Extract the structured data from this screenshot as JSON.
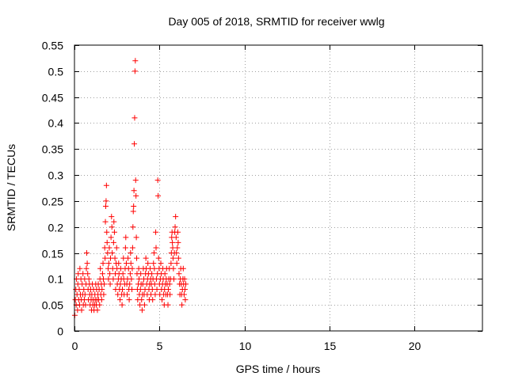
{
  "chart_data": {
    "type": "scatter",
    "title": "Day 005 of 2018, SRMTID for receiver wwlg",
    "xlabel": "GPS time / hours",
    "ylabel": "SRMTID / TECUs",
    "xlim": [
      0,
      24
    ],
    "ylim": [
      0,
      0.55
    ],
    "x_ticks": [
      0,
      5,
      10,
      15,
      20
    ],
    "x_tick_labels": [
      "0",
      "5",
      "10",
      "15",
      "20"
    ],
    "y_ticks": [
      0,
      0.05,
      0.1,
      0.15,
      0.2,
      0.25,
      0.3,
      0.35,
      0.4,
      0.45,
      0.5,
      0.55
    ],
    "y_tick_labels": [
      "0",
      "0.05",
      "0.1",
      "0.15",
      "0.2",
      "0.25",
      "0.3",
      "0.35",
      "0.4",
      "0.45",
      "0.5",
      "0.55"
    ],
    "grid": true,
    "marker": "+",
    "color": "#ff0000",
    "series": [
      {
        "name": "SRMTID",
        "points": [
          [
            0.02,
            0.03
          ],
          [
            0.05,
            0.06
          ],
          [
            0.08,
            0.08
          ],
          [
            0.1,
            0.05
          ],
          [
            0.12,
            0.1
          ],
          [
            0.15,
            0.07
          ],
          [
            0.18,
            0.04
          ],
          [
            0.2,
            0.09
          ],
          [
            0.22,
            0.11
          ],
          [
            0.25,
            0.06
          ],
          [
            0.28,
            0.08
          ],
          [
            0.3,
            0.05
          ],
          [
            0.32,
            0.12
          ],
          [
            0.35,
            0.07
          ],
          [
            0.38,
            0.1
          ],
          [
            0.4,
            0.06
          ],
          [
            0.42,
            0.04
          ],
          [
            0.45,
            0.09
          ],
          [
            0.48,
            0.07
          ],
          [
            0.5,
            0.11
          ],
          [
            0.52,
            0.05
          ],
          [
            0.55,
            0.08
          ],
          [
            0.58,
            0.06
          ],
          [
            0.6,
            0.1
          ],
          [
            0.62,
            0.07
          ],
          [
            0.65,
            0.05
          ],
          [
            0.68,
            0.09
          ],
          [
            0.7,
            0.12
          ],
          [
            0.72,
            0.15
          ],
          [
            0.75,
            0.13
          ],
          [
            0.78,
            0.11
          ],
          [
            0.8,
            0.08
          ],
          [
            0.82,
            0.06
          ],
          [
            0.85,
            0.1
          ],
          [
            0.88,
            0.09
          ],
          [
            0.9,
            0.07
          ],
          [
            0.92,
            0.05
          ],
          [
            0.95,
            0.08
          ],
          [
            0.98,
            0.06
          ],
          [
            1.0,
            0.04
          ],
          [
            1.02,
            0.07
          ],
          [
            1.05,
            0.09
          ],
          [
            1.08,
            0.05
          ],
          [
            1.1,
            0.06
          ],
          [
            1.12,
            0.08
          ],
          [
            1.15,
            0.04
          ],
          [
            1.18,
            0.05
          ],
          [
            1.2,
            0.07
          ],
          [
            1.22,
            0.06
          ],
          [
            1.25,
            0.09
          ],
          [
            1.28,
            0.05
          ],
          [
            1.3,
            0.08
          ],
          [
            1.32,
            0.06
          ],
          [
            1.35,
            0.04
          ],
          [
            1.38,
            0.07
          ],
          [
            1.4,
            0.09
          ],
          [
            1.42,
            0.06
          ],
          [
            1.45,
            0.08
          ],
          [
            1.48,
            0.05
          ],
          [
            1.5,
            0.1
          ],
          [
            1.52,
            0.12
          ],
          [
            1.55,
            0.07
          ],
          [
            1.58,
            0.09
          ],
          [
            1.6,
            0.06
          ],
          [
            1.62,
            0.08
          ],
          [
            1.65,
            0.11
          ],
          [
            1.68,
            0.13
          ],
          [
            1.7,
            0.1
          ],
          [
            1.72,
            0.07
          ],
          [
            1.75,
            0.09
          ],
          [
            1.78,
            0.16
          ],
          [
            1.8,
            0.14
          ],
          [
            1.82,
            0.21
          ],
          [
            1.84,
            0.24
          ],
          [
            1.86,
            0.25
          ],
          [
            1.88,
            0.28
          ],
          [
            1.9,
            0.19
          ],
          [
            1.92,
            0.17
          ],
          [
            1.95,
            0.15
          ],
          [
            1.98,
            0.12
          ],
          [
            2.0,
            0.1
          ],
          [
            2.02,
            0.13
          ],
          [
            2.05,
            0.16
          ],
          [
            2.08,
            0.11
          ],
          [
            2.1,
            0.09
          ],
          [
            2.12,
            0.14
          ],
          [
            2.15,
            0.18
          ],
          [
            2.18,
            0.22
          ],
          [
            2.2,
            0.2
          ],
          [
            2.22,
            0.15
          ],
          [
            2.25,
            0.12
          ],
          [
            2.28,
            0.1
          ],
          [
            2.3,
            0.17
          ],
          [
            2.32,
            0.21
          ],
          [
            2.35,
            0.19
          ],
          [
            2.38,
            0.14
          ],
          [
            2.4,
            0.11
          ],
          [
            2.42,
            0.08
          ],
          [
            2.45,
            0.13
          ],
          [
            2.48,
            0.16
          ],
          [
            2.5,
            0.12
          ],
          [
            2.52,
            0.09
          ],
          [
            2.55,
            0.07
          ],
          [
            2.58,
            0.1
          ],
          [
            2.6,
            0.13
          ],
          [
            2.62,
            0.11
          ],
          [
            2.65,
            0.08
          ],
          [
            2.68,
            0.06
          ],
          [
            2.7,
            0.09
          ],
          [
            2.72,
            0.12
          ],
          [
            2.75,
            0.1
          ],
          [
            2.78,
            0.07
          ],
          [
            2.8,
            0.05
          ],
          [
            2.82,
            0.08
          ],
          [
            2.85,
            0.11
          ],
          [
            2.88,
            0.14
          ],
          [
            2.9,
            0.1
          ],
          [
            2.92,
            0.07
          ],
          [
            2.95,
            0.09
          ],
          [
            2.98,
            0.12
          ],
          [
            3.0,
            0.16
          ],
          [
            3.02,
            0.18
          ],
          [
            3.05,
            0.13
          ],
          [
            3.08,
            0.09
          ],
          [
            3.1,
            0.07
          ],
          [
            3.12,
            0.1
          ],
          [
            3.15,
            0.14
          ],
          [
            3.18,
            0.12
          ],
          [
            3.2,
            0.08
          ],
          [
            3.22,
            0.06
          ],
          [
            3.25,
            0.09
          ],
          [
            3.28,
            0.11
          ],
          [
            3.3,
            0.15
          ],
          [
            3.32,
            0.13
          ],
          [
            3.35,
            0.1
          ],
          [
            3.38,
            0.08
          ],
          [
            3.4,
            0.12
          ],
          [
            3.42,
            0.16
          ],
          [
            3.44,
            0.2
          ],
          [
            3.46,
            0.23
          ],
          [
            3.48,
            0.24
          ],
          [
            3.5,
            0.27
          ],
          [
            3.52,
            0.36
          ],
          [
            3.54,
            0.41
          ],
          [
            3.56,
            0.5
          ],
          [
            3.58,
            0.52
          ],
          [
            3.6,
            0.29
          ],
          [
            3.62,
            0.26
          ],
          [
            3.64,
            0.18
          ],
          [
            3.66,
            0.14
          ],
          [
            3.68,
            0.11
          ],
          [
            3.7,
            0.08
          ],
          [
            3.72,
            0.06
          ],
          [
            3.75,
            0.09
          ],
          [
            3.78,
            0.12
          ],
          [
            3.8,
            0.1
          ],
          [
            3.82,
            0.07
          ],
          [
            3.85,
            0.05
          ],
          [
            3.88,
            0.08
          ],
          [
            3.9,
            0.11
          ],
          [
            3.92,
            0.09
          ],
          [
            3.95,
            0.06
          ],
          [
            3.98,
            0.04
          ],
          [
            4.0,
            0.07
          ],
          [
            4.02,
            0.09
          ],
          [
            4.05,
            0.12
          ],
          [
            4.08,
            0.1
          ],
          [
            4.1,
            0.07
          ],
          [
            4.12,
            0.05
          ],
          [
            4.15,
            0.08
          ],
          [
            4.18,
            0.11
          ],
          [
            4.2,
            0.14
          ],
          [
            4.22,
            0.12
          ],
          [
            4.25,
            0.09
          ],
          [
            4.28,
            0.07
          ],
          [
            4.3,
            0.1
          ],
          [
            4.32,
            0.13
          ],
          [
            4.35,
            0.11
          ],
          [
            4.38,
            0.08
          ],
          [
            4.4,
            0.06
          ],
          [
            4.42,
            0.09
          ],
          [
            4.45,
            0.12
          ],
          [
            4.48,
            0.1
          ],
          [
            4.5,
            0.07
          ],
          [
            4.52,
            0.09
          ],
          [
            4.55,
            0.11
          ],
          [
            4.58,
            0.08
          ],
          [
            4.6,
            0.06
          ],
          [
            4.62,
            0.1
          ],
          [
            4.65,
            0.13
          ],
          [
            4.68,
            0.15
          ],
          [
            4.7,
            0.12
          ],
          [
            4.72,
            0.09
          ],
          [
            4.75,
            0.07
          ],
          [
            4.78,
            0.19
          ],
          [
            4.8,
            0.16
          ],
          [
            4.82,
            0.1
          ],
          [
            4.85,
            0.08
          ],
          [
            4.88,
            0.11
          ],
          [
            4.9,
            0.29
          ],
          [
            4.92,
            0.26
          ],
          [
            4.95,
            0.14
          ],
          [
            4.98,
            0.12
          ],
          [
            5.0,
            0.09
          ],
          [
            5.02,
            0.07
          ],
          [
            5.05,
            0.1
          ],
          [
            5.08,
            0.13
          ],
          [
            5.1,
            0.11
          ],
          [
            5.12,
            0.08
          ],
          [
            5.15,
            0.06
          ],
          [
            5.18,
            0.09
          ],
          [
            5.2,
            0.12
          ],
          [
            5.22,
            0.1
          ],
          [
            5.25,
            0.07
          ],
          [
            5.28,
            0.05
          ],
          [
            5.3,
            0.08
          ],
          [
            5.32,
            0.11
          ],
          [
            5.35,
            0.09
          ],
          [
            5.38,
            0.07
          ],
          [
            5.4,
            0.1
          ],
          [
            5.42,
            0.12
          ],
          [
            5.45,
            0.09
          ],
          [
            5.48,
            0.07
          ],
          [
            5.5,
            0.05
          ],
          [
            5.52,
            0.08
          ],
          [
            5.55,
            0.1
          ],
          [
            5.58,
            0.12
          ],
          [
            5.6,
            0.09
          ],
          [
            5.62,
            0.07
          ],
          [
            5.65,
            0.1
          ],
          [
            5.68,
            0.13
          ],
          [
            5.7,
            0.15
          ],
          [
            5.72,
            0.18
          ],
          [
            5.74,
            0.19
          ],
          [
            5.76,
            0.17
          ],
          [
            5.78,
            0.16
          ],
          [
            5.8,
            0.14
          ],
          [
            5.82,
            0.12
          ],
          [
            5.85,
            0.1
          ],
          [
            5.88,
            0.15
          ],
          [
            5.9,
            0.19
          ],
          [
            5.92,
            0.2
          ],
          [
            5.95,
            0.22
          ],
          [
            5.98,
            0.18
          ],
          [
            6.0,
            0.15
          ],
          [
            6.02,
            0.13
          ],
          [
            6.05,
            0.16
          ],
          [
            6.08,
            0.19
          ],
          [
            6.1,
            0.17
          ],
          [
            6.12,
            0.14
          ],
          [
            6.15,
            0.11
          ],
          [
            6.18,
            0.09
          ],
          [
            6.2,
            0.07
          ],
          [
            6.22,
            0.1
          ],
          [
            6.25,
            0.12
          ],
          [
            6.28,
            0.09
          ],
          [
            6.3,
            0.07
          ],
          [
            6.32,
            0.05
          ],
          [
            6.35,
            0.08
          ],
          [
            6.38,
            0.1
          ],
          [
            6.4,
            0.12
          ],
          [
            6.42,
            0.09
          ],
          [
            6.45,
            0.07
          ],
          [
            6.48,
            0.1
          ],
          [
            6.5,
            0.08
          ],
          [
            6.52,
            0.06
          ],
          [
            6.55,
            0.09
          ]
        ]
      }
    ]
  }
}
